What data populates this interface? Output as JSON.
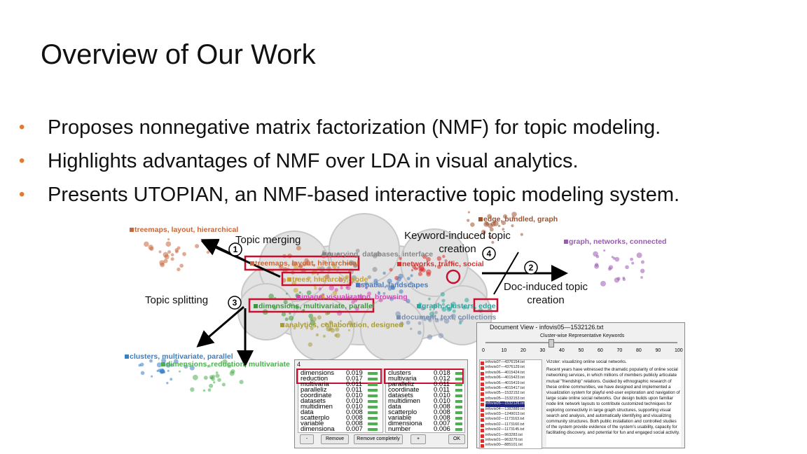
{
  "title": "Overview of Our Work",
  "bullets": [
    "Proposes nonnegative matrix factorization (NMF) for topic modeling.",
    "Highlights advantages of NMF over LDA in visual analytics.",
    "Presents UTOPIAN, an NMF-based interactive topic modeling system."
  ],
  "figure": {
    "clusters": [
      {
        "label": "treemaps, layout, hierarchical",
        "color": "#c8683a"
      },
      {
        "label": "edge, bundled, graph",
        "color": "#a0522d"
      },
      {
        "label": "graph, networks, connected",
        "color": "#9b59b6"
      },
      {
        "label": "querying, databases, interface",
        "color": "#888888"
      },
      {
        "label": "treemaps, layout, hierarchical",
        "color": "#c8683a"
      },
      {
        "label": "networks, traffic, social",
        "color": "#d9302c"
      },
      {
        "label": "trees, hierarchy, node",
        "color": "#c9a227"
      },
      {
        "label": "spatial, landscapes",
        "color": "#4a7bbf"
      },
      {
        "label": "image, visualization, browsing",
        "color": "#d04bb5"
      },
      {
        "label": "dimensions, multivariate, parallel",
        "color": "#3a9a3a"
      },
      {
        "label": "graph, clusters, edge",
        "color": "#2ca8a0"
      },
      {
        "label": "document, text, collections",
        "color": "#7a8fb0"
      },
      {
        "label": "analytics, collaboration, designed",
        "color": "#a89a3a"
      },
      {
        "label": "clusters, multivariate, parallel",
        "color": "#3b7fc4"
      },
      {
        "label": "dimensions, reduction, multivariate",
        "color": "#4caf50"
      }
    ],
    "annotations": {
      "merging": "Topic merging",
      "keyword": "Keyword-induced topic creation",
      "doc": "Doc-induced topic creation",
      "splitting": "Topic splitting"
    },
    "markers": [
      "1",
      "2",
      "3",
      "4"
    ],
    "keyword_window": {
      "title": "4",
      "columns": [
        [
          [
            "dimensions",
            "0.019"
          ],
          [
            "reduction",
            "0.017"
          ],
          [
            "multivaria",
            "0.011"
          ],
          [
            "paralleliz",
            "0.011"
          ],
          [
            "coordinate",
            "0.010"
          ],
          [
            "datasets",
            "0.010"
          ],
          [
            "multidimen",
            "0.010"
          ],
          [
            "data",
            "0.008"
          ],
          [
            "scatterplo",
            "0.008"
          ],
          [
            "variable",
            "0.008"
          ],
          [
            "dimensiona",
            "0.007"
          ]
        ],
        [
          [
            "clusters",
            "0.018"
          ],
          [
            "multivaria",
            "0.012"
          ],
          [
            "paralleliz",
            "0.011"
          ],
          [
            "coordinate",
            "0.011"
          ],
          [
            "datasets",
            "0.010"
          ],
          [
            "multidimen",
            "0.010"
          ],
          [
            "data",
            "0.008"
          ],
          [
            "scatterplo",
            "0.008"
          ],
          [
            "variable",
            "0.008"
          ],
          [
            "dimensiona",
            "0.007"
          ],
          [
            "number",
            "0.006"
          ]
        ]
      ],
      "buttons": [
        "-",
        "Remove",
        "Remove completely",
        "+",
        "OK"
      ]
    },
    "document_window": {
      "title": "Document View - infovis05—1532126.txt",
      "header": "Cluster-wise Representative Keywords",
      "slider_ticks": [
        "0",
        "10",
        "20",
        "30",
        "40",
        "50",
        "60",
        "70",
        "80",
        "90",
        "100"
      ],
      "files": [
        "infovis07—4376154.txt",
        "infovis07—4376129.txt",
        "infovis06—4015424.txt",
        "infovis06—4015423.txt",
        "infovis06—4015419.txt",
        "infovis06—4015417.txt",
        "infovis05—1532152.txt",
        "infovis05—1532153.txt",
        "infovis05—1532126.txt",
        "infovis04—1382889.txt",
        "infovis03—1249013.txt",
        "infovis02—1173163.txt",
        "infovis02—1173160.txt",
        "infovis02—1173145.txt",
        "infovis01—963283.txt",
        "infovis01—963279.txt",
        "infovis00—885101.txt"
      ],
      "text": [
        "Vizster: visualizing online social networks.",
        "Recent years have witnessed the dramatic popularity of online social networking services, in which millions of members publicly articulate mutual \"friendship\" relations. Guided by ethnographic research of these online communities, we have designed and implemented a visualization system for playful end-user exploration and navigation of large scale online social networks. Our design builds upon familiar node link network layouts to contribute customized techniques for exploring connectivity in large graph structures, supporting visual search and analysis, and automatically identifying and visualizing community structures. Both public installation and controlled studies of the system provide evidence of the system's usability, capacity for facilitating discovery, and potential for fun and engaged social activity."
      ]
    }
  }
}
